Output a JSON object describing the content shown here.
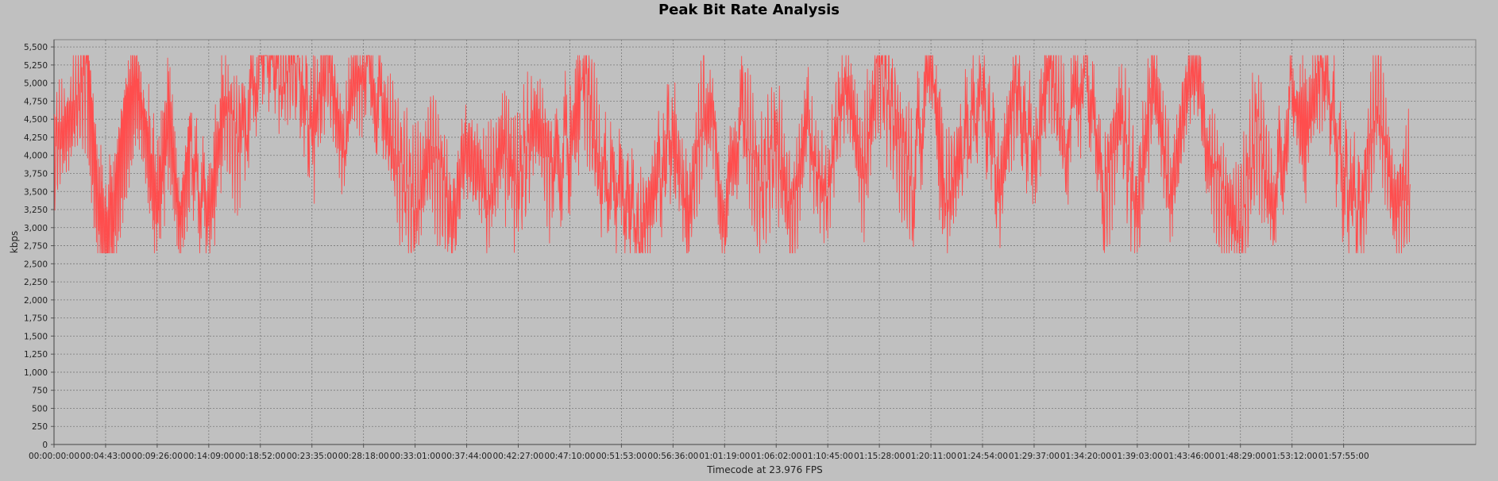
{
  "chart_data": {
    "type": "line",
    "title": "Peak Bit Rate Analysis",
    "xlabel": "Timecode at 23.976 FPS",
    "ylabel": "kbps",
    "ylim": [
      0,
      5600
    ],
    "yticks": [
      0,
      250,
      500,
      750,
      1000,
      1250,
      1500,
      1750,
      2000,
      2250,
      2500,
      2750,
      3000,
      3250,
      3500,
      3750,
      4000,
      4250,
      4500,
      4750,
      5000,
      5250,
      5500
    ],
    "ytick_labels": [
      "0",
      "250",
      "500",
      "750",
      "1,000",
      "1,250",
      "1,500",
      "1,750",
      "2,000",
      "2,250",
      "2,500",
      "2,750",
      "3,000",
      "3,250",
      "3,500",
      "3,750",
      "4,000",
      "4,250",
      "4,500",
      "4,750",
      "5,000",
      "5,250",
      "5,500"
    ],
    "xlim": [
      "00:00:00:00",
      "02:10:00:00"
    ],
    "xtick_labels": [
      "00:00:00:00",
      "00:04:43:00",
      "00:09:26:00",
      "00:14:09:00",
      "00:18:52:00",
      "00:23:35:00",
      "00:28:18:00",
      "00:33:01:00",
      "00:37:44:00",
      "00:42:27:00",
      "00:47:10:00",
      "00:51:53:00",
      "00:56:36:00",
      "01:01:19:00",
      "01:06:02:00",
      "01:10:45:00",
      "01:15:28:00",
      "01:20:11:00",
      "01:24:54:00",
      "01:29:37:00",
      "01:34:20:00",
      "01:39:03:00",
      "01:43:46:00",
      "01:48:29:00",
      "01:53:12:00",
      "01:57:55:00"
    ],
    "grid": true,
    "series": [
      {
        "color": "#ff4d4d",
        "x": [
          "00:00:00:00",
          "00:01:30:00",
          "00:03:00:00",
          "00:04:00:00",
          "00:04:43:00",
          "00:05:30:00",
          "00:06:30:00",
          "00:07:30:00",
          "00:08:30:00",
          "00:09:26:00",
          "00:10:30:00",
          "00:11:30:00",
          "00:12:30:00",
          "00:14:09:00",
          "00:15:30:00",
          "00:17:00:00",
          "00:18:52:00",
          "00:20:30:00",
          "00:22:00:00",
          "00:23:35:00",
          "00:25:00:00",
          "00:26:30:00",
          "00:28:18:00",
          "00:30:00:00",
          "00:31:30:00",
          "00:33:01:00",
          "00:34:30:00",
          "00:36:00:00",
          "00:37:44:00",
          "00:39:30:00",
          "00:41:00:00",
          "00:42:27:00",
          "00:44:00:00",
          "00:45:30:00",
          "00:47:10:00",
          "00:48:30:00",
          "00:50:00:00",
          "00:51:53:00",
          "00:53:30:00",
          "00:55:00:00",
          "00:56:36:00",
          "00:58:00:00",
          "00:59:30:00",
          "01:01:19:00",
          "01:03:00:00",
          "01:04:30:00",
          "01:06:02:00",
          "01:07:30:00",
          "01:09:00:00",
          "01:10:45:00",
          "01:12:30:00",
          "01:14:00:00",
          "01:15:28:00",
          "01:17:00:00",
          "01:18:30:00",
          "01:20:11:00",
          "01:21:30:00",
          "01:23:00:00",
          "01:24:54:00",
          "01:26:30:00",
          "01:28:00:00",
          "01:29:37:00",
          "01:31:00:00",
          "01:32:30:00",
          "01:34:20:00",
          "01:36:00:00",
          "01:37:30:00",
          "01:39:03:00",
          "01:40:30:00",
          "01:42:00:00",
          "01:43:46:00",
          "01:45:30:00",
          "01:47:00:00",
          "01:48:29:00",
          "01:50:00:00",
          "01:51:30:00",
          "01:53:12:00",
          "01:54:30:00",
          "01:56:00:00",
          "01:57:55:00",
          "01:59:30:00",
          "02:01:00:00",
          "02:02:30:00",
          "02:04:00:00"
        ],
        "y": [
          4100,
          4500,
          5200,
          3400,
          2800,
          3300,
          4400,
          5000,
          4200,
          3300,
          4600,
          3000,
          4200,
          3100,
          4700,
          4100,
          5380,
          5100,
          5380,
          4300,
          5380,
          4000,
          5380,
          4600,
          3900,
          3300,
          4100,
          3400,
          3700,
          3300,
          4200,
          3600,
          4500,
          3800,
          4100,
          5200,
          3700,
          3500,
          2800,
          3600,
          4300,
          3100,
          4800,
          3300,
          4600,
          3500,
          4200,
          3100,
          4700,
          3200,
          5000,
          3700,
          5380,
          4400,
          3600,
          5380,
          3300,
          4100,
          4900,
          3500,
          5100,
          3800,
          5380,
          4200,
          5380,
          3400,
          4600,
          3200,
          5100,
          3600,
          5380,
          4100,
          3300,
          3000,
          4400,
          3200,
          4800,
          4300,
          5380,
          3700,
          3200,
          4900,
          3300,
          3600
        ]
      }
    ]
  }
}
